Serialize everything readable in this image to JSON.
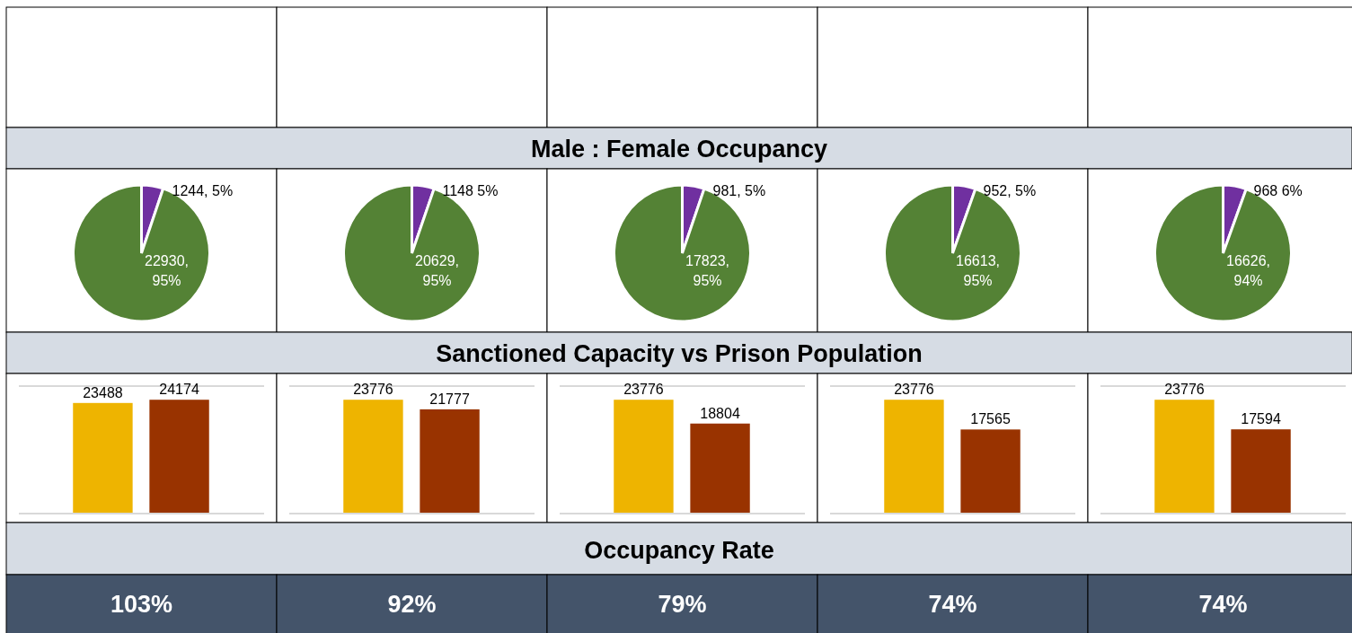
{
  "chart_data": [
    {
      "type": "other",
      "title": "Male : Female Occupancy"
    },
    {
      "type": "pie",
      "categories": [
        null,
        null
      ],
      "values": [
        1244,
        22930
      ],
      "colors": [
        "#7030a0",
        "#548235"
      ],
      "value_labels": [
        "1244, 5%",
        "22930, 95%"
      ]
    },
    {
      "type": "pie",
      "categories": [
        null,
        null
      ],
      "values": [
        1148,
        20629
      ],
      "colors": [
        "#7030a0",
        "#548235"
      ],
      "value_labels": [
        "1148 5%",
        "20629, 95%"
      ]
    },
    {
      "type": "pie",
      "categories": [
        null,
        null
      ],
      "values": [
        981,
        17823
      ],
      "colors": [
        "#7030a0",
        "#548235"
      ],
      "value_labels": [
        "981, 5%",
        "17823, 95%"
      ]
    },
    {
      "type": "pie",
      "categories": [
        null,
        null
      ],
      "values": [
        952,
        16613
      ],
      "colors": [
        "#7030a0",
        "#548235"
      ],
      "value_labels": [
        "952, 5%",
        "16613, 95%"
      ]
    },
    {
      "type": "pie",
      "categories": [
        null,
        null
      ],
      "values": [
        968,
        16626
      ],
      "colors": [
        "#7030a0",
        "#548235"
      ],
      "value_labels": [
        "968 6%",
        "16626, 94%"
      ]
    },
    {
      "type": "other",
      "title": "Sanctioned Capacity vs Prison Population"
    },
    {
      "type": "bar",
      "categories": [
        null,
        null
      ],
      "values": [
        23488,
        24174
      ],
      "colors": [
        "#eeb400",
        "#993300"
      ],
      "data_labels": true
    },
    {
      "type": "bar",
      "categories": [
        null,
        null
      ],
      "values": [
        23776,
        21777
      ],
      "colors": [
        "#eeb400",
        "#993300"
      ],
      "data_labels": true
    },
    {
      "type": "bar",
      "categories": [
        null,
        null
      ],
      "values": [
        23776,
        18804
      ],
      "colors": [
        "#eeb400",
        "#993300"
      ],
      "data_labels": true
    },
    {
      "type": "bar",
      "categories": [
        null,
        null
      ],
      "values": [
        23776,
        17565
      ],
      "colors": [
        "#eeb400",
        "#993300"
      ],
      "data_labels": true
    },
    {
      "type": "bar",
      "categories": [
        null,
        null
      ],
      "values": [
        23776,
        17594
      ],
      "colors": [
        "#eeb400",
        "#993300"
      ],
      "data_labels": true
    },
    {
      "type": "other",
      "title": "Occupancy Rate",
      "values": [
        103,
        92,
        79,
        74,
        74
      ],
      "value_labels": [
        "103%",
        "92%",
        "79%",
        "74%",
        "74%"
      ]
    }
  ]
}
